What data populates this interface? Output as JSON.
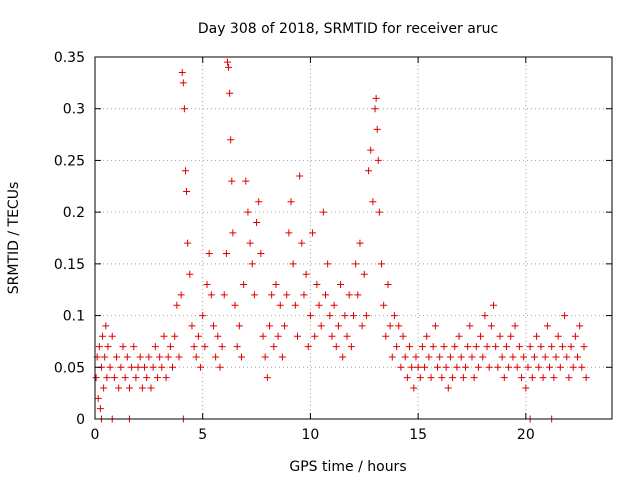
{
  "chart_data": {
    "type": "scatter",
    "title": "Day 308 of 2018, SRMTID for receiver aruc",
    "xlabel": "GPS time / hours",
    "ylabel": "SRMTID / TECUs",
    "xlim": [
      0,
      24
    ],
    "ylim": [
      0,
      0.35
    ],
    "xticks": [
      0,
      5,
      10,
      15,
      20
    ],
    "xtick_labels": [
      "0",
      "5",
      "10",
      "15",
      "20"
    ],
    "yticks": [
      0,
      0.05,
      0.1,
      0.15,
      0.2,
      0.25,
      0.3,
      0.35
    ],
    "ytick_labels": [
      "0",
      "0.05",
      "0.1",
      "0.15",
      "0.2",
      "0.25",
      "0.3",
      "0.35"
    ],
    "grid": true,
    "marker": "+",
    "color": "#e00000",
    "series": [
      {
        "name": "SRMTID",
        "points": [
          [
            0.05,
            0.04
          ],
          [
            0.1,
            0.06
          ],
          [
            0.15,
            0.02
          ],
          [
            0.2,
            0.07
          ],
          [
            0.25,
            0.01
          ],
          [
            0.3,
            0.05
          ],
          [
            0.35,
            0.08
          ],
          [
            0.4,
            0.03
          ],
          [
            0.45,
            0.06
          ],
          [
            0.5,
            0.09
          ],
          [
            0.55,
            0.04
          ],
          [
            0.6,
            0.07
          ],
          [
            0.7,
            0.05
          ],
          [
            0.8,
            0.08
          ],
          [
            0.9,
            0.04
          ],
          [
            1.0,
            0.06
          ],
          [
            1.1,
            0.03
          ],
          [
            1.2,
            0.05
          ],
          [
            1.3,
            0.07
          ],
          [
            1.4,
            0.04
          ],
          [
            1.5,
            0.06
          ],
          [
            1.6,
            0.03
          ],
          [
            1.7,
            0.05
          ],
          [
            1.8,
            0.07
          ],
          [
            1.9,
            0.04
          ],
          [
            2.0,
            0.05
          ],
          [
            2.1,
            0.06
          ],
          [
            2.2,
            0.03
          ],
          [
            2.3,
            0.05
          ],
          [
            2.4,
            0.04
          ],
          [
            2.5,
            0.06
          ],
          [
            2.6,
            0.03
          ],
          [
            2.7,
            0.05
          ],
          [
            2.8,
            0.07
          ],
          [
            2.9,
            0.04
          ],
          [
            3.0,
            0.06
          ],
          [
            3.1,
            0.05
          ],
          [
            3.2,
            0.08
          ],
          [
            3.3,
            0.04
          ],
          [
            3.4,
            0.06
          ],
          [
            3.5,
            0.07
          ],
          [
            3.6,
            0.05
          ],
          [
            3.7,
            0.08
          ],
          [
            3.8,
            0.11
          ],
          [
            3.9,
            0.06
          ],
          [
            4.0,
            0.12
          ],
          [
            4.05,
            0.335
          ],
          [
            4.1,
            0.325
          ],
          [
            4.15,
            0.3
          ],
          [
            4.2,
            0.24
          ],
          [
            4.25,
            0.22
          ],
          [
            4.3,
            0.17
          ],
          [
            4.4,
            0.14
          ],
          [
            4.5,
            0.09
          ],
          [
            4.6,
            0.07
          ],
          [
            4.7,
            0.06
          ],
          [
            4.8,
            0.08
          ],
          [
            4.9,
            0.05
          ],
          [
            5.0,
            0.1
          ],
          [
            5.1,
            0.07
          ],
          [
            5.2,
            0.13
          ],
          [
            5.3,
            0.16
          ],
          [
            5.4,
            0.12
          ],
          [
            5.5,
            0.09
          ],
          [
            5.6,
            0.06
          ],
          [
            5.7,
            0.08
          ],
          [
            5.8,
            0.05
          ],
          [
            5.9,
            0.07
          ],
          [
            6.0,
            0.12
          ],
          [
            6.1,
            0.16
          ],
          [
            6.15,
            0.345
          ],
          [
            6.2,
            0.34
          ],
          [
            6.25,
            0.315
          ],
          [
            6.3,
            0.27
          ],
          [
            6.35,
            0.23
          ],
          [
            6.4,
            0.18
          ],
          [
            6.5,
            0.11
          ],
          [
            6.6,
            0.07
          ],
          [
            6.7,
            0.09
          ],
          [
            6.8,
            0.06
          ],
          [
            6.9,
            0.13
          ],
          [
            7.0,
            0.23
          ],
          [
            7.1,
            0.2
          ],
          [
            7.2,
            0.17
          ],
          [
            7.3,
            0.15
          ],
          [
            7.4,
            0.12
          ],
          [
            7.5,
            0.19
          ],
          [
            7.6,
            0.21
          ],
          [
            7.7,
            0.16
          ],
          [
            7.8,
            0.08
          ],
          [
            7.9,
            0.06
          ],
          [
            8.0,
            0.04
          ],
          [
            8.1,
            0.09
          ],
          [
            8.2,
            0.12
          ],
          [
            8.3,
            0.07
          ],
          [
            8.4,
            0.13
          ],
          [
            8.5,
            0.08
          ],
          [
            8.6,
            0.11
          ],
          [
            8.7,
            0.06
          ],
          [
            8.8,
            0.09
          ],
          [
            8.9,
            0.12
          ],
          [
            9.0,
            0.18
          ],
          [
            9.1,
            0.21
          ],
          [
            9.2,
            0.15
          ],
          [
            9.3,
            0.11
          ],
          [
            9.4,
            0.08
          ],
          [
            9.5,
            0.235
          ],
          [
            9.6,
            0.17
          ],
          [
            9.7,
            0.12
          ],
          [
            9.8,
            0.14
          ],
          [
            9.9,
            0.07
          ],
          [
            10.0,
            0.1
          ],
          [
            10.1,
            0.18
          ],
          [
            10.2,
            0.08
          ],
          [
            10.3,
            0.13
          ],
          [
            10.4,
            0.11
          ],
          [
            10.5,
            0.09
          ],
          [
            10.6,
            0.2
          ],
          [
            10.7,
            0.12
          ],
          [
            10.8,
            0.15
          ],
          [
            10.9,
            0.1
          ],
          [
            11.0,
            0.08
          ],
          [
            11.1,
            0.11
          ],
          [
            11.2,
            0.07
          ],
          [
            11.3,
            0.09
          ],
          [
            11.4,
            0.13
          ],
          [
            11.5,
            0.06
          ],
          [
            11.6,
            0.1
          ],
          [
            11.7,
            0.08
          ],
          [
            11.8,
            0.12
          ],
          [
            11.9,
            0.07
          ],
          [
            12.0,
            0.1
          ],
          [
            12.1,
            0.15
          ],
          [
            12.2,
            0.12
          ],
          [
            12.3,
            0.17
          ],
          [
            12.4,
            0.09
          ],
          [
            12.5,
            0.14
          ],
          [
            12.6,
            0.1
          ],
          [
            12.7,
            0.24
          ],
          [
            12.8,
            0.26
          ],
          [
            12.9,
            0.21
          ],
          [
            13.0,
            0.3
          ],
          [
            13.05,
            0.31
          ],
          [
            13.1,
            0.28
          ],
          [
            13.15,
            0.25
          ],
          [
            13.2,
            0.2
          ],
          [
            13.3,
            0.15
          ],
          [
            13.4,
            0.11
          ],
          [
            13.5,
            0.08
          ],
          [
            13.6,
            0.13
          ],
          [
            13.7,
            0.09
          ],
          [
            13.8,
            0.06
          ],
          [
            13.9,
            0.1
          ],
          [
            14.0,
            0.07
          ],
          [
            14.1,
            0.09
          ],
          [
            14.2,
            0.05
          ],
          [
            14.3,
            0.08
          ],
          [
            14.4,
            0.06
          ],
          [
            14.5,
            0.04
          ],
          [
            14.6,
            0.07
          ],
          [
            14.7,
            0.05
          ],
          [
            14.8,
            0.03
          ],
          [
            14.9,
            0.06
          ],
          [
            15.0,
            0.05
          ],
          [
            15.1,
            0.04
          ],
          [
            15.2,
            0.07
          ],
          [
            15.3,
            0.05
          ],
          [
            15.4,
            0.08
          ],
          [
            15.5,
            0.06
          ],
          [
            15.6,
            0.04
          ],
          [
            15.7,
            0.07
          ],
          [
            15.8,
            0.09
          ],
          [
            15.9,
            0.05
          ],
          [
            16.0,
            0.06
          ],
          [
            16.1,
            0.04
          ],
          [
            16.2,
            0.07
          ],
          [
            16.3,
            0.05
          ],
          [
            16.4,
            0.03
          ],
          [
            16.5,
            0.06
          ],
          [
            16.6,
            0.04
          ],
          [
            16.7,
            0.07
          ],
          [
            16.8,
            0.05
          ],
          [
            16.9,
            0.08
          ],
          [
            17.0,
            0.06
          ],
          [
            17.1,
            0.04
          ],
          [
            17.2,
            0.05
          ],
          [
            17.3,
            0.07
          ],
          [
            17.4,
            0.09
          ],
          [
            17.5,
            0.06
          ],
          [
            17.6,
            0.04
          ],
          [
            17.7,
            0.07
          ],
          [
            17.8,
            0.05
          ],
          [
            17.9,
            0.08
          ],
          [
            18.0,
            0.06
          ],
          [
            18.1,
            0.1
          ],
          [
            18.2,
            0.07
          ],
          [
            18.3,
            0.05
          ],
          [
            18.4,
            0.09
          ],
          [
            18.5,
            0.11
          ],
          [
            18.6,
            0.07
          ],
          [
            18.7,
            0.05
          ],
          [
            18.8,
            0.08
          ],
          [
            18.9,
            0.06
          ],
          [
            19.0,
            0.04
          ],
          [
            19.1,
            0.07
          ],
          [
            19.2,
            0.05
          ],
          [
            19.3,
            0.08
          ],
          [
            19.4,
            0.06
          ],
          [
            19.5,
            0.09
          ],
          [
            19.6,
            0.05
          ],
          [
            19.7,
            0.07
          ],
          [
            19.8,
            0.04
          ],
          [
            19.9,
            0.06
          ],
          [
            20.0,
            0.03
          ],
          [
            20.1,
            0.05
          ],
          [
            20.2,
            0.07
          ],
          [
            20.3,
            0.04
          ],
          [
            20.4,
            0.06
          ],
          [
            20.5,
            0.08
          ],
          [
            20.6,
            0.05
          ],
          [
            20.7,
            0.07
          ],
          [
            20.8,
            0.04
          ],
          [
            20.9,
            0.06
          ],
          [
            21.0,
            0.09
          ],
          [
            21.1,
            0.05
          ],
          [
            21.2,
            0.07
          ],
          [
            21.3,
            0.04
          ],
          [
            21.4,
            0.06
          ],
          [
            21.5,
            0.08
          ],
          [
            21.6,
            0.05
          ],
          [
            21.7,
            0.07
          ],
          [
            21.8,
            0.1
          ],
          [
            21.9,
            0.06
          ],
          [
            22.0,
            0.04
          ],
          [
            22.1,
            0.07
          ],
          [
            22.2,
            0.05
          ],
          [
            22.3,
            0.08
          ],
          [
            22.4,
            0.06
          ],
          [
            22.5,
            0.09
          ],
          [
            22.6,
            0.05
          ],
          [
            22.7,
            0.07
          ],
          [
            22.8,
            0.04
          ],
          [
            0.3,
            0.0
          ],
          [
            0.8,
            0.0
          ],
          [
            1.6,
            0.0
          ],
          [
            4.1,
            0.0
          ],
          [
            20.2,
            0.0
          ],
          [
            21.2,
            0.0
          ]
        ]
      }
    ]
  }
}
